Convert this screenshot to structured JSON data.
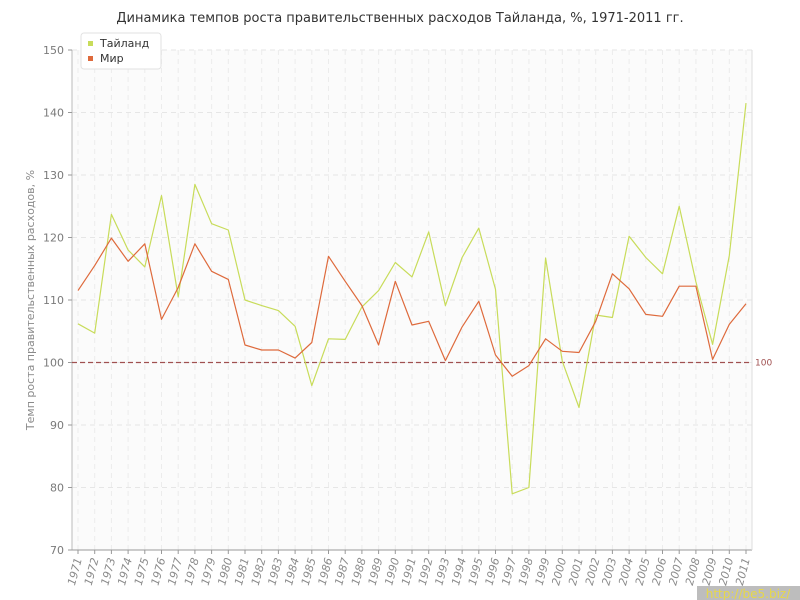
{
  "chart_data": {
    "type": "line",
    "title": "Динамика темпов роста правительственных расходов Тайланда, %, 1971-2011 гг.",
    "ylabel": "Темп роста правительственных расходов, %",
    "xlabel": "",
    "ylim": [
      70,
      150
    ],
    "yticks": [
      70,
      80,
      90,
      100,
      110,
      120,
      130,
      140,
      150
    ],
    "grid": true,
    "legend_position": "top-left",
    "x": [
      "1971",
      "1972",
      "1973",
      "1974",
      "1975",
      "1976",
      "1977",
      "1978",
      "1979",
      "1980",
      "1981",
      "1982",
      "1983",
      "1984",
      "1985",
      "1986",
      "1987",
      "1988",
      "1989",
      "1990",
      "1991",
      "1992",
      "1993",
      "1994",
      "1995",
      "1996",
      "1997",
      "1998",
      "1999",
      "2000",
      "2001",
      "2002",
      "2003",
      "2004",
      "2005",
      "2006",
      "2007",
      "2008",
      "2009",
      "2010",
      "2011"
    ],
    "series": [
      {
        "name": "Тайланд",
        "color": "#c8dc5a",
        "values": [
          106.2,
          104.7,
          123.7,
          118.0,
          115.3,
          126.7,
          110.5,
          128.5,
          122.2,
          121.2,
          110.0,
          109.1,
          108.3,
          105.8,
          96.3,
          103.8,
          103.7,
          108.9,
          111.5,
          116.0,
          113.7,
          120.9,
          109.1,
          116.8,
          121.5,
          111.7,
          79.0,
          80.0,
          116.7,
          100.2,
          92.8,
          107.6,
          107.2,
          120.2,
          116.8,
          114.2,
          125.0,
          112.9,
          102.9,
          117.1,
          141.5
        ]
      },
      {
        "name": "Мир",
        "color": "#de6a3c",
        "values": [
          111.5,
          115.5,
          119.9,
          116.2,
          119.0,
          106.9,
          112.0,
          119.0,
          114.6,
          113.3,
          102.8,
          102.0,
          102.0,
          100.7,
          103.2,
          117.0,
          113.0,
          109.1,
          102.8,
          113.0,
          106.0,
          106.6,
          100.3,
          105.7,
          109.8,
          101.2,
          97.8,
          99.5,
          103.8,
          101.8,
          101.6,
          106.6,
          114.2,
          111.8,
          107.7,
          107.4,
          112.2,
          112.2,
          100.5,
          106.1,
          109.4
        ]
      }
    ],
    "reference_line": {
      "value": 100,
      "label": "100",
      "color": "#a05050"
    }
  },
  "watermark": "http://be5.biz/"
}
